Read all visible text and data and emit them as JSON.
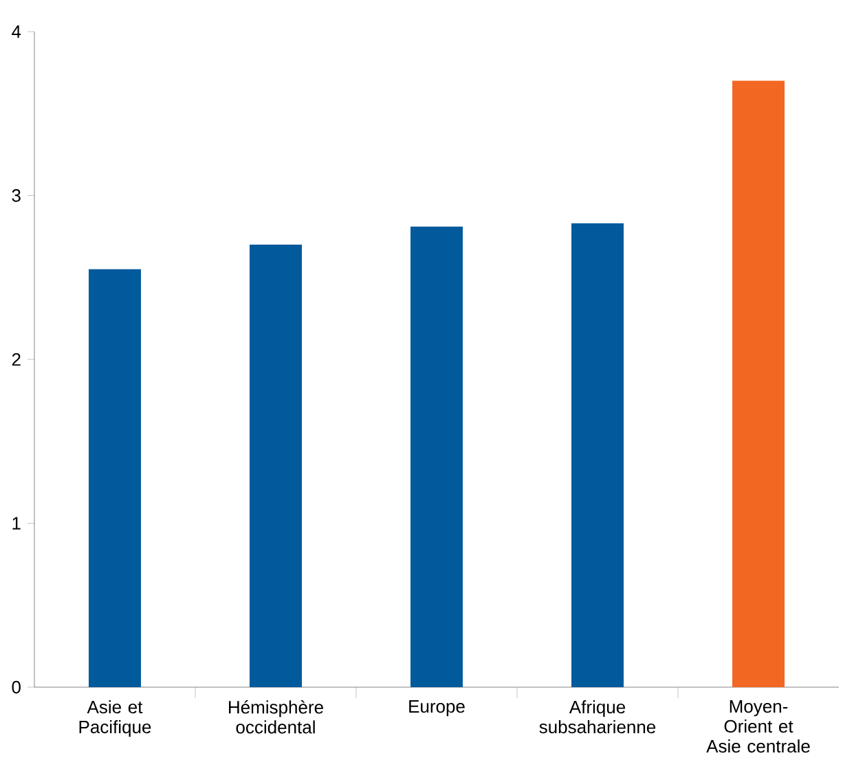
{
  "chart_data": {
    "type": "bar",
    "categories": [
      "Asie et Pacifique",
      "Hémisphère occidental",
      "Europe",
      "Afrique subsaharienne",
      "Moyen-Orient et Asie centrale"
    ],
    "values": [
      2.55,
      2.7,
      2.81,
      2.83,
      3.7
    ],
    "colors": [
      "#005a9c",
      "#005a9c",
      "#005a9c",
      "#005a9c",
      "#f26722"
    ],
    "ylim": [
      0,
      4
    ],
    "yticks": [
      0,
      1,
      2,
      3,
      4
    ],
    "grid": false
  }
}
